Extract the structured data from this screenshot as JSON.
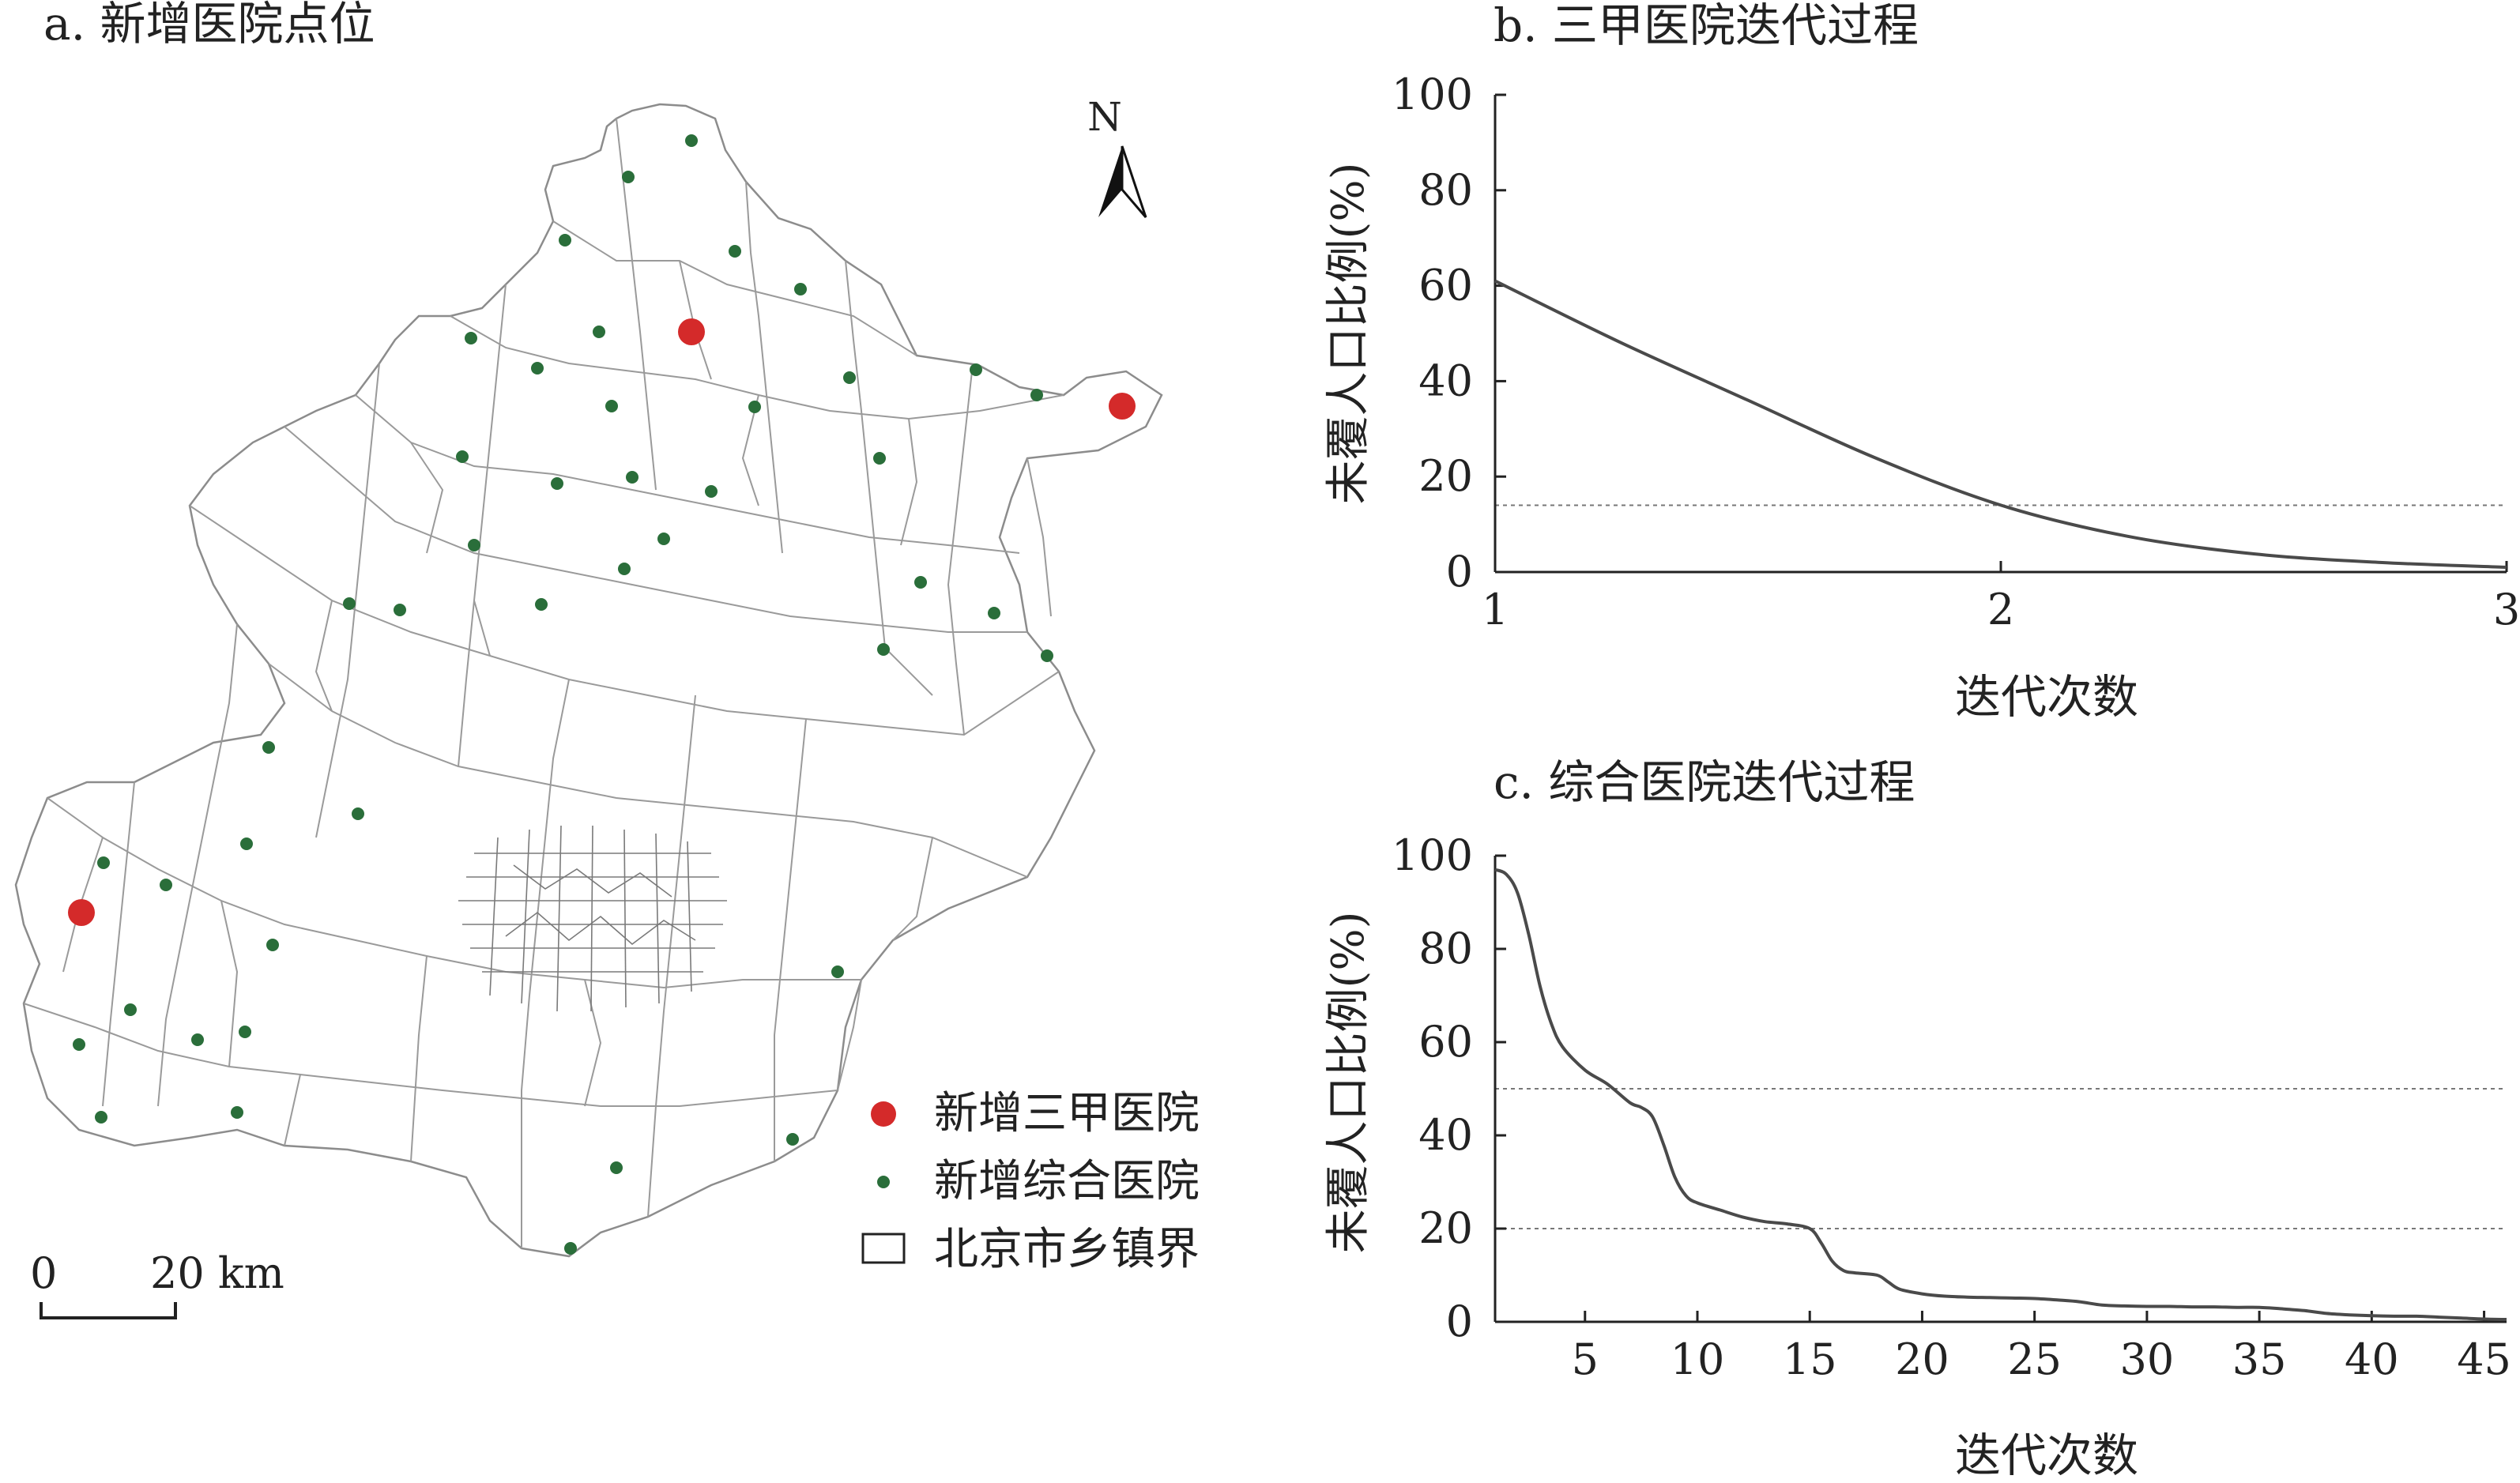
{
  "panel_a": {
    "title": "a. 新增医院点位",
    "north_label": "N",
    "scale_zero": "0",
    "scale_distance": "20 km",
    "legend": {
      "tertiary": "新增三甲医院",
      "general": "新增综合医院",
      "boundary": "北京市乡镇界"
    },
    "colors": {
      "tertiary": "#d42a2a",
      "general": "#2a6e3a",
      "boundary": "#8c8c8c"
    }
  },
  "chart_data": [
    {
      "id": "b",
      "type": "line",
      "title": "b. 三甲医院迭代过程",
      "xlabel": "迭代次数",
      "ylabel": "未覆人口比例(%)",
      "xlim": [
        1,
        3
      ],
      "ylim": [
        0,
        100
      ],
      "xticks": [
        1,
        2,
        3
      ],
      "yticks": [
        0,
        20,
        40,
        60,
        80,
        100
      ],
      "reference_lines": [
        14
      ],
      "x": [
        1,
        1.25,
        1.5,
        1.75,
        2,
        2.25,
        2.5,
        2.75,
        3
      ],
      "y": [
        61,
        48,
        36,
        24,
        14,
        7.5,
        3.8,
        2,
        1
      ]
    },
    {
      "id": "c",
      "type": "line",
      "title": "c. 综合医院迭代过程",
      "xlabel": "迭代次数",
      "ylabel": "未覆人口比例(%)",
      "xlim": [
        1,
        46
      ],
      "ylim": [
        0,
        100
      ],
      "xticks": [
        5,
        10,
        15,
        20,
        25,
        30,
        35,
        40,
        45
      ],
      "yticks": [
        0,
        20,
        40,
        60,
        80,
        100
      ],
      "reference_lines": [
        50,
        20
      ],
      "x": [
        1,
        1.5,
        2,
        2.5,
        3,
        3.5,
        4,
        5,
        6,
        7,
        7.5,
        8,
        8.5,
        9,
        9.5,
        10,
        11,
        12,
        13,
        14,
        15,
        15.5,
        16,
        16.5,
        17,
        18,
        18.5,
        19,
        20,
        21,
        22,
        23,
        24,
        25,
        26,
        27,
        28,
        29,
        30,
        31,
        32,
        33,
        34,
        35,
        36,
        37,
        38,
        39,
        40,
        41,
        42,
        43,
        44,
        45,
        46
      ],
      "y": [
        97,
        96,
        92,
        83,
        72,
        64,
        59,
        54,
        51,
        47,
        46,
        44,
        38,
        31,
        27,
        25.5,
        24,
        22.5,
        21.5,
        21,
        20,
        17,
        13,
        11,
        10.5,
        10,
        8.5,
        7,
        6,
        5.5,
        5.3,
        5.2,
        5.1,
        5,
        4.7,
        4.3,
        3.6,
        3.4,
        3.3,
        3.3,
        3.2,
        3.2,
        3.1,
        3.1,
        2.8,
        2.4,
        1.8,
        1.5,
        1.3,
        1.2,
        1.2,
        1,
        0.8,
        0.6,
        0.5
      ]
    }
  ]
}
